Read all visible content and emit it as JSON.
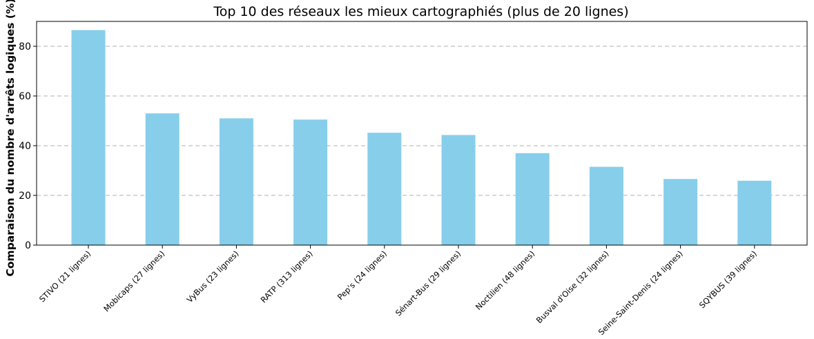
{
  "chart_data": {
    "type": "bar",
    "title": "Top 10 des réseaux les mieux cartographiés (plus de 20 lignes)",
    "xlabel": "",
    "ylabel": "Comparaison du nombre d'arrêts logiques (%)",
    "ylim": [
      0,
      90
    ],
    "yticks": [
      0,
      20,
      40,
      60,
      80
    ],
    "grid": "y-dashed",
    "bar_color": "#87CEEB",
    "categories": [
      "STIVO (21 lignes)",
      "Mobicaps (27 lignes)",
      "VyBus (23 lignes)",
      "RATP (313 lignes)",
      "Pep's (24 lignes)",
      "Sénart-Bus (29 lignes)",
      "Noctilien (48 lignes)",
      "Busval d'Oise (32 lignes)",
      "Seine-Saint-Denis (24 lignes)",
      "SQYBUS (39 lignes)"
    ],
    "values": [
      86.5,
      53.0,
      51.0,
      50.5,
      45.2,
      44.3,
      37.0,
      31.5,
      26.6,
      25.9
    ]
  }
}
